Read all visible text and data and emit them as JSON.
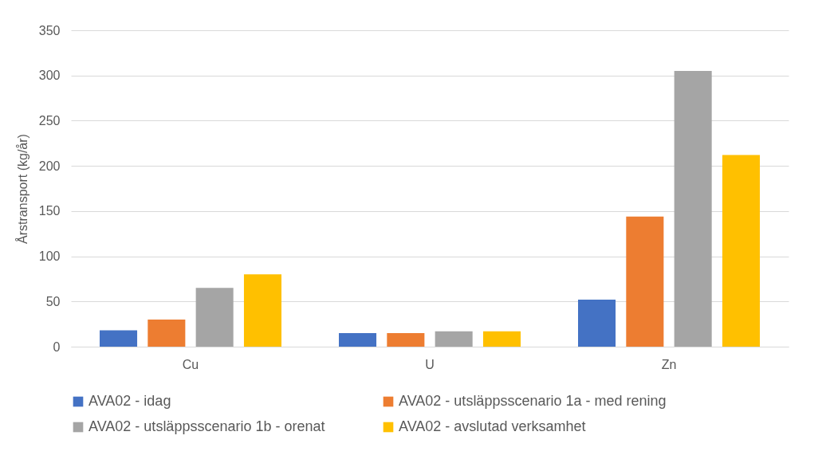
{
  "chart_data": {
    "type": "bar",
    "ylabel": "Årstransport (kg/år)",
    "categories": [
      "Cu",
      "U",
      "Zn"
    ],
    "series": [
      {
        "name": "AVA02 - idag",
        "color": "#4472c4",
        "values": [
          18,
          15,
          52
        ]
      },
      {
        "name": "AVA02 - utsläppsscenario 1a - med rening",
        "color": "#ed7d31",
        "values": [
          30,
          15,
          144
        ]
      },
      {
        "name": "AVA02 - utsläppsscenario 1b - orenat",
        "color": "#a5a5a5",
        "values": [
          65,
          17,
          305
        ]
      },
      {
        "name": "AVA02 - avslutad verksamhet",
        "color": "#ffc000",
        "values": [
          80,
          17,
          212
        ]
      }
    ],
    "ylim": [
      0,
      350
    ],
    "yticks": [
      0,
      50,
      100,
      150,
      200,
      250,
      300,
      350
    ],
    "grid": "y",
    "legend": "bottom"
  }
}
